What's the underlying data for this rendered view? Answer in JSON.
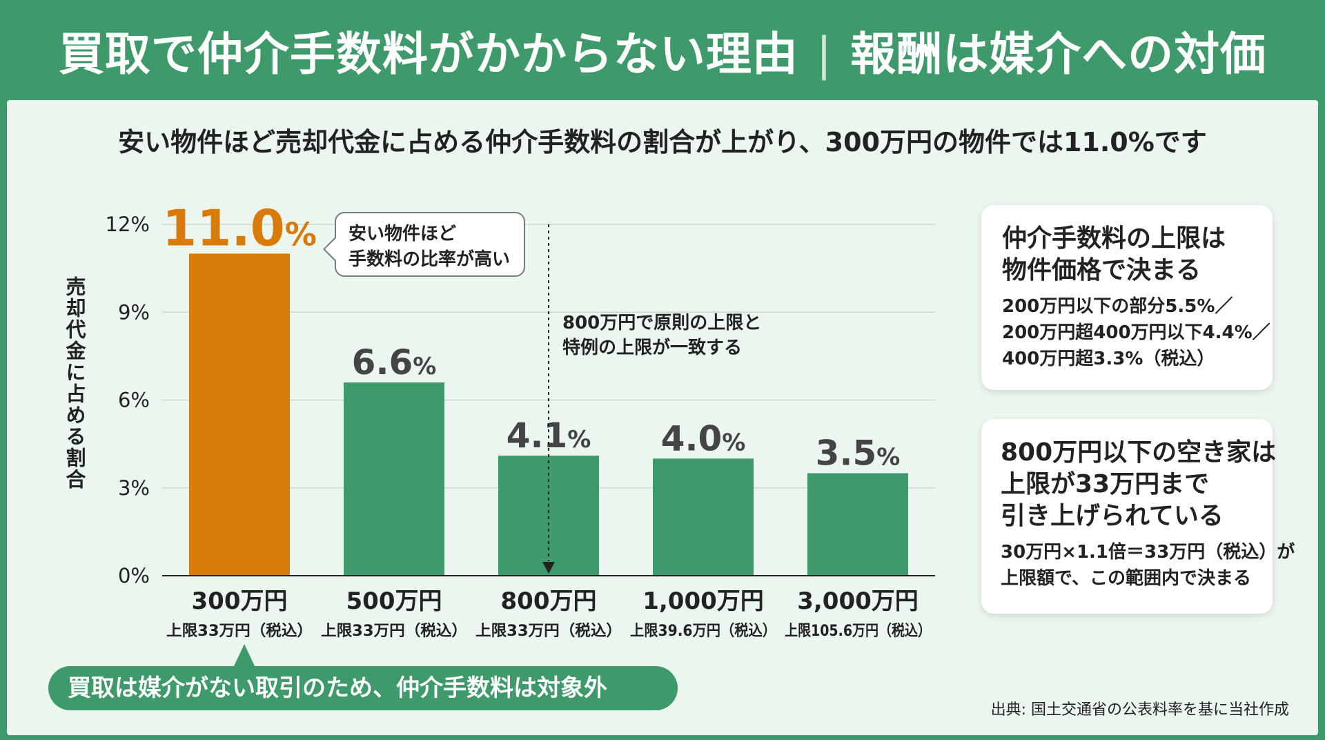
{
  "header": {
    "title_main": "買取で仲介手数料がかからない理由",
    "title_sep": "|",
    "title_sub": "報酬は媒介への対価"
  },
  "subtitle": "安い物件ほど売却代金に占める仲介手数料の割合が上がり、300万円の物件では11.0%です",
  "chart_data": {
    "type": "bar",
    "categories": [
      "300万円",
      "500万円",
      "800万円",
      "1,000万円",
      "3,000万円"
    ],
    "sublabels": [
      "上限33万円（税込）",
      "上限33万円（税込）",
      "上限33万円（税込）",
      "上限39.6万円（税込）",
      "上限105.6万円（税込）"
    ],
    "values": [
      11.0,
      6.6,
      4.1,
      4.0,
      3.5
    ],
    "value_labels": [
      "11.0",
      "6.6",
      "4.1",
      "4.0",
      "3.5"
    ],
    "value_unit": "%",
    "ylabel": "売却代金に占める割合",
    "ylim": [
      0,
      12
    ],
    "yticks": [
      0,
      3,
      6,
      9,
      12
    ],
    "ytick_labels": [
      "0%",
      "3%",
      "6%",
      "9%",
      "12%"
    ],
    "grid": true,
    "highlight_index": 0,
    "colors": {
      "highlight": "#d97b0b",
      "bar": "#3e9a6b",
      "label": "#444444",
      "highlight_label": "#d97b0b"
    }
  },
  "callout": {
    "line1": "安い物件ほど",
    "line2": "手数料の比率が高い"
  },
  "note_800": {
    "line1": "800万円で原則の上限と",
    "line2": "特例の上限が一致する"
  },
  "card1": {
    "title_line1": "仲介手数料の上限は",
    "title_line2": "物件価格で決まる",
    "body_line1": "200万円以下の部分5.5%／",
    "body_line2": "200万円超400万円以下4.4%／",
    "body_line3": "400万円超3.3%（税込）"
  },
  "card2": {
    "title_line1": "800万円以下の空き家は",
    "title_line2": "上限が33万円まで",
    "title_line3": "引き上げられている",
    "body_line1": "30万円×1.1倍＝33万円（税込）が",
    "body_line2": "上限額で、この範囲内で決まる"
  },
  "pill": "買取は媒介がない取引のため、仲介手数料は対象外",
  "source": "出典: 国土交通省の公表料率を基に当社作成"
}
